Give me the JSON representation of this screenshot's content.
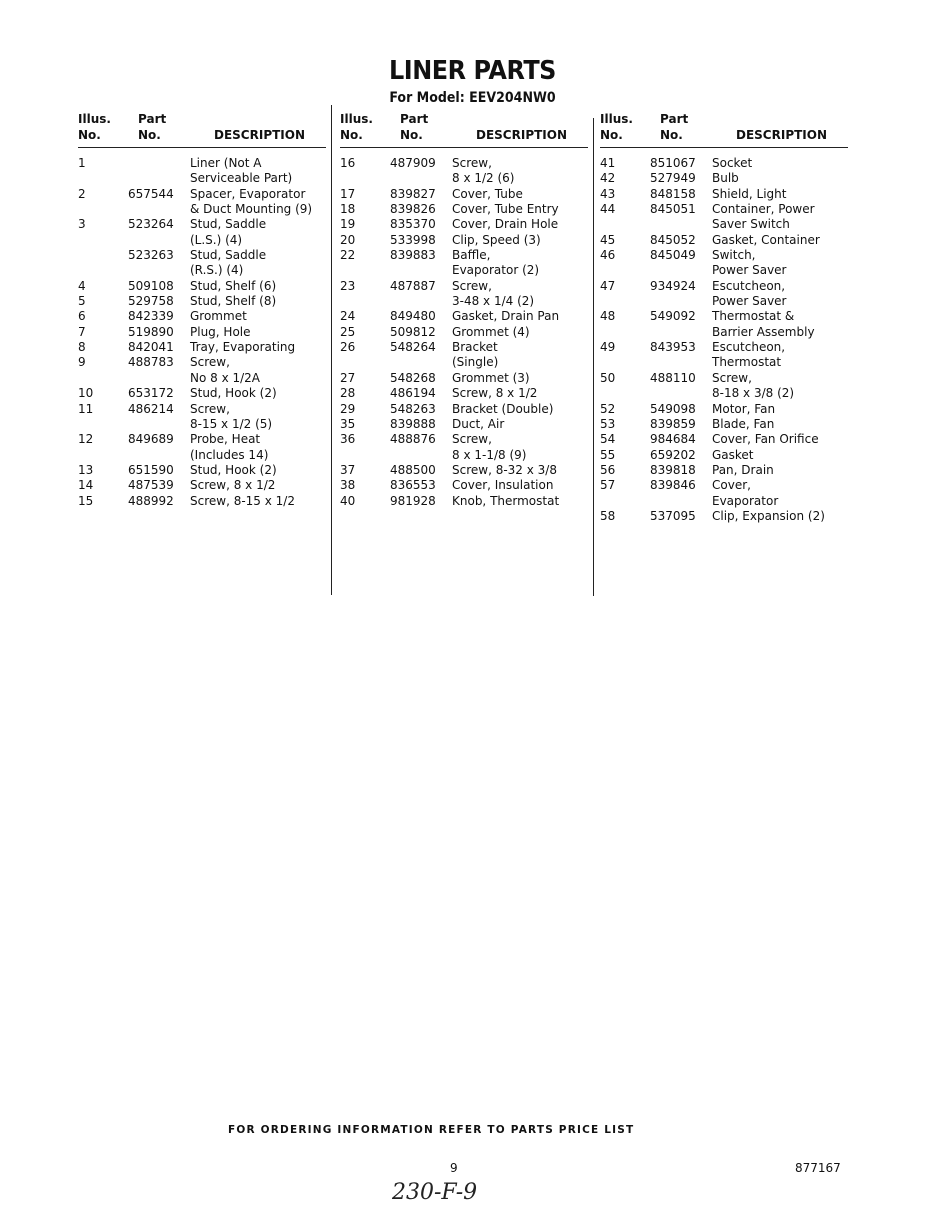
{
  "title": "LINER PARTS",
  "model": "For Model: EEV204NW0",
  "headers": {
    "illus_1": "Illus.",
    "illus_2": "No.",
    "part_1": "Part",
    "part_2": "No.",
    "description": "DESCRIPTION"
  },
  "columns": [
    {
      "items": [
        {
          "no": "1",
          "part": "",
          "desc": [
            "Liner (Not A",
            "Serviceable Part)"
          ]
        },
        {
          "no": "2",
          "part": "657544",
          "desc": [
            "Spacer, Evaporator",
            "& Duct Mounting (9)"
          ]
        },
        {
          "no": "3",
          "part": "523264",
          "desc": [
            "Stud, Saddle",
            "(L.S.) (4)"
          ]
        },
        {
          "no": "",
          "part": "523263",
          "desc": [
            "Stud, Saddle",
            "(R.S.) (4)"
          ]
        },
        {
          "no": "4",
          "part": "509108",
          "desc": [
            "Stud, Shelf (6)"
          ]
        },
        {
          "no": "5",
          "part": "529758",
          "desc": [
            "Stud, Shelf (8)"
          ]
        },
        {
          "no": "6",
          "part": "842339",
          "desc": [
            "Grommet"
          ]
        },
        {
          "no": "7",
          "part": "519890",
          "desc": [
            "Plug, Hole"
          ]
        },
        {
          "no": "8",
          "part": "842041",
          "desc": [
            "Tray, Evaporating"
          ]
        },
        {
          "no": "9",
          "part": "488783",
          "desc": [
            "Screw,",
            "No 8 x 1/2A"
          ]
        },
        {
          "no": "10",
          "part": "653172",
          "desc": [
            "Stud, Hook (2)"
          ]
        },
        {
          "no": "11",
          "part": "486214",
          "desc": [
            "Screw,",
            "8-15 x 1/2 (5)"
          ]
        },
        {
          "no": "12",
          "part": "849689",
          "desc": [
            "Probe, Heat",
            "(Includes 14)"
          ]
        },
        {
          "no": "13",
          "part": "651590",
          "desc": [
            "Stud, Hook (2)"
          ]
        },
        {
          "no": "14",
          "part": "487539",
          "desc": [
            "Screw, 8 x 1/2"
          ]
        },
        {
          "no": "15",
          "part": "488992",
          "desc": [
            "Screw, 8-15 x 1/2"
          ]
        }
      ]
    },
    {
      "items": [
        {
          "no": "16",
          "part": "487909",
          "desc": [
            "Screw,",
            "8 x 1/2 (6)"
          ]
        },
        {
          "no": "17",
          "part": "839827",
          "desc": [
            "Cover, Tube"
          ]
        },
        {
          "no": "18",
          "part": "839826",
          "desc": [
            "Cover, Tube Entry"
          ]
        },
        {
          "no": "19",
          "part": "835370",
          "desc": [
            "Cover, Drain Hole"
          ]
        },
        {
          "no": "20",
          "part": "533998",
          "desc": [
            "Clip, Speed (3)"
          ]
        },
        {
          "no": "22",
          "part": "839883",
          "desc": [
            "Baffle,",
            "Evaporator (2)"
          ]
        },
        {
          "no": "23",
          "part": "487887",
          "desc": [
            "Screw,",
            "3-48 x 1/4 (2)"
          ]
        },
        {
          "no": "24",
          "part": "849480",
          "desc": [
            "Gasket, Drain Pan"
          ]
        },
        {
          "no": "25",
          "part": "509812",
          "desc": [
            "Grommet (4)"
          ]
        },
        {
          "no": "26",
          "part": "548264",
          "desc": [
            "Bracket",
            "(Single)"
          ]
        },
        {
          "no": "27",
          "part": "548268",
          "desc": [
            "Grommet (3)"
          ]
        },
        {
          "no": "28",
          "part": "486194",
          "desc": [
            "Screw, 8 x 1/2"
          ]
        },
        {
          "no": "29",
          "part": "548263",
          "desc": [
            "Bracket (Double)"
          ]
        },
        {
          "no": "35",
          "part": "839888",
          "desc": [
            "Duct, Air"
          ]
        },
        {
          "no": "36",
          "part": "488876",
          "desc": [
            "Screw,",
            "8 x 1-1/8 (9)"
          ]
        },
        {
          "no": "37",
          "part": "488500",
          "desc": [
            "Screw, 8-32 x 3/8"
          ]
        },
        {
          "no": "38",
          "part": "836553",
          "desc": [
            "Cover, Insulation"
          ]
        },
        {
          "no": "40",
          "part": "981928",
          "desc": [
            "Knob, Thermostat"
          ]
        }
      ]
    },
    {
      "items": [
        {
          "no": "41",
          "part": "851067",
          "desc": [
            "Socket"
          ]
        },
        {
          "no": "42",
          "part": "527949",
          "desc": [
            "Bulb"
          ]
        },
        {
          "no": "43",
          "part": "848158",
          "desc": [
            "Shield, Light"
          ]
        },
        {
          "no": "44",
          "part": "845051",
          "desc": [
            "Container, Power",
            "Saver Switch"
          ]
        },
        {
          "no": "45",
          "part": "845052",
          "desc": [
            "Gasket, Container"
          ]
        },
        {
          "no": "46",
          "part": "845049",
          "desc": [
            "Switch,",
            "Power Saver"
          ]
        },
        {
          "no": "47",
          "part": "934924",
          "desc": [
            "Escutcheon,",
            "Power Saver"
          ]
        },
        {
          "no": "48",
          "part": "549092",
          "desc": [
            "Thermostat &",
            "Barrier Assembly"
          ]
        },
        {
          "no": "49",
          "part": "843953",
          "desc": [
            "Escutcheon,",
            "Thermostat"
          ]
        },
        {
          "no": "50",
          "part": "488110",
          "desc": [
            "Screw,",
            "8-18 x 3/8 (2)"
          ]
        },
        {
          "no": "52",
          "part": "549098",
          "desc": [
            "Motor, Fan"
          ]
        },
        {
          "no": "53",
          "part": "839859",
          "desc": [
            "Blade, Fan"
          ]
        },
        {
          "no": "54",
          "part": "984684",
          "desc": [
            "Cover, Fan Orifice"
          ]
        },
        {
          "no": "55",
          "part": "659202",
          "desc": [
            "Gasket"
          ]
        },
        {
          "no": "56",
          "part": "839818",
          "desc": [
            "Pan, Drain"
          ]
        },
        {
          "no": "57",
          "part": "839846",
          "desc": [
            "Cover,",
            "Evaporator"
          ]
        },
        {
          "no": "58",
          "part": "537095",
          "desc": [
            "Clip, Expansion (2)"
          ]
        }
      ]
    }
  ],
  "footer": {
    "ordering_note": "FOR ORDERING INFORMATION REFER TO PARTS PRICE LIST",
    "page_number": "9",
    "doc_number": "877167",
    "handwritten": "230-F-9"
  }
}
